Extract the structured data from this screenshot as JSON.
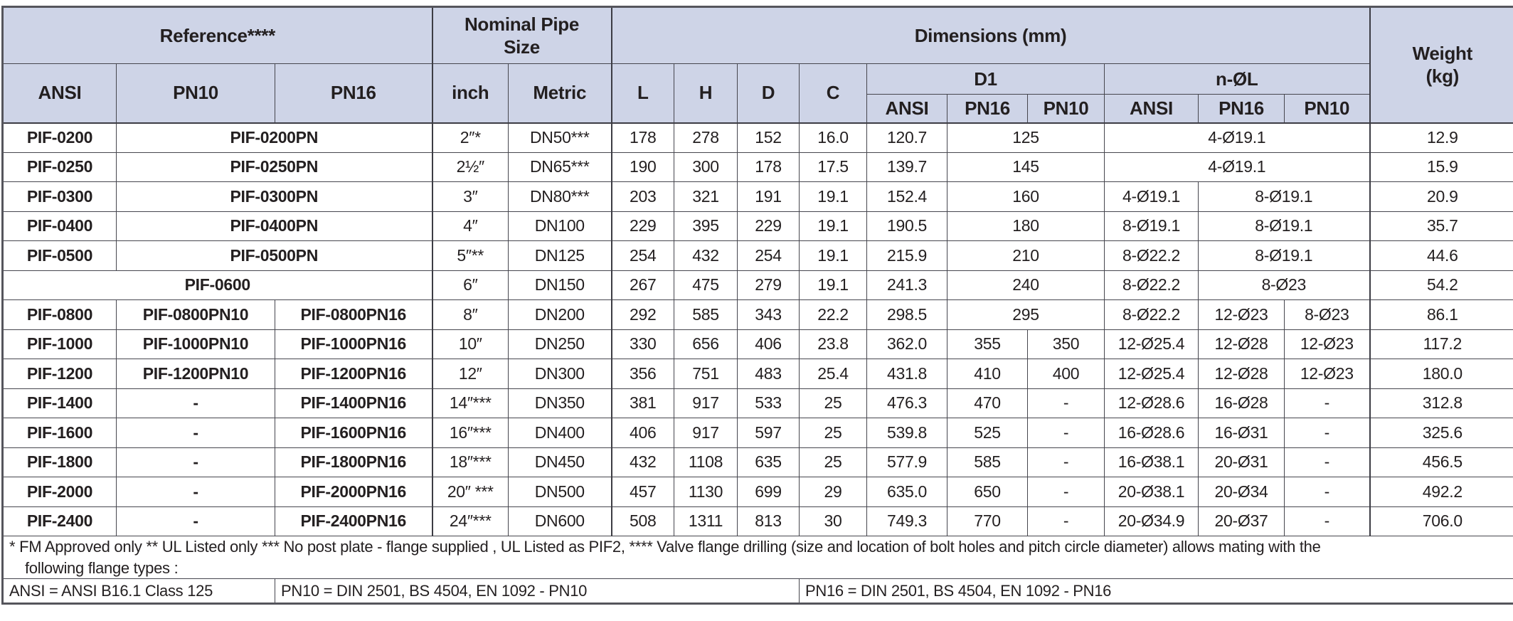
{
  "header": {
    "reference": "Reference****",
    "nominal_line1": "Nominal Pipe",
    "nominal_line2": "Size",
    "dimensions": "Dimensions (mm)",
    "weight_line1": "Weight",
    "weight_line2": "(kg)",
    "sub": {
      "ansi": "ANSI",
      "pn10": "PN10",
      "pn16": "PN16",
      "inch": "inch",
      "metric": "Metric",
      "l": "L",
      "h": "H",
      "d": "D",
      "c": "C",
      "d1": "D1",
      "n_ol": "n-ØL"
    }
  },
  "table": {
    "columns_order": [
      "Reference ANSI",
      "Reference PN10",
      "Reference PN16",
      "inch",
      "Metric",
      "L",
      "H",
      "D",
      "C",
      "D1 ANSI",
      "D1 PN16",
      "D1 PN10",
      "n-ØL ANSI",
      "n-ØL PN16",
      "n-ØL PN10",
      "Weight (kg)"
    ],
    "body": [
      [
        [
          "PIF-0200",
          1
        ],
        [
          "PIF-0200PN",
          2
        ],
        [
          "2″*",
          1
        ],
        [
          "DN50***",
          1
        ],
        [
          "178",
          1
        ],
        [
          "278",
          1
        ],
        [
          "152",
          1
        ],
        [
          "16.0",
          1
        ],
        [
          "120.7",
          1
        ],
        [
          "125",
          2
        ],
        [
          "4-Ø19.1",
          3
        ],
        [
          "12.9",
          1
        ]
      ],
      [
        [
          "PIF-0250",
          1
        ],
        [
          "PIF-0250PN",
          2
        ],
        [
          "2½″",
          1
        ],
        [
          "DN65***",
          1
        ],
        [
          "190",
          1
        ],
        [
          "300",
          1
        ],
        [
          "178",
          1
        ],
        [
          "17.5",
          1
        ],
        [
          "139.7",
          1
        ],
        [
          "145",
          2
        ],
        [
          "4-Ø19.1",
          3
        ],
        [
          "15.9",
          1
        ]
      ],
      [
        [
          "PIF-0300",
          1
        ],
        [
          "PIF-0300PN",
          2
        ],
        [
          "3″",
          1
        ],
        [
          "DN80***",
          1
        ],
        [
          "203",
          1
        ],
        [
          "321",
          1
        ],
        [
          "191",
          1
        ],
        [
          "19.1",
          1
        ],
        [
          "152.4",
          1
        ],
        [
          "160",
          2
        ],
        [
          "4-Ø19.1",
          1
        ],
        [
          "8-Ø19.1",
          2
        ],
        [
          "20.9",
          1
        ]
      ],
      [
        [
          "PIF-0400",
          1
        ],
        [
          "PIF-0400PN",
          2
        ],
        [
          "4″",
          1
        ],
        [
          "DN100",
          1
        ],
        [
          "229",
          1
        ],
        [
          "395",
          1
        ],
        [
          "229",
          1
        ],
        [
          "19.1",
          1
        ],
        [
          "190.5",
          1
        ],
        [
          "180",
          2
        ],
        [
          "8-Ø19.1",
          1
        ],
        [
          "8-Ø19.1",
          2
        ],
        [
          "35.7",
          1
        ]
      ],
      [
        [
          "PIF-0500",
          1
        ],
        [
          "PIF-0500PN",
          2
        ],
        [
          "5″**",
          1
        ],
        [
          "DN125",
          1
        ],
        [
          "254",
          1
        ],
        [
          "432",
          1
        ],
        [
          "254",
          1
        ],
        [
          "19.1",
          1
        ],
        [
          "215.9",
          1
        ],
        [
          "210",
          2
        ],
        [
          "8-Ø22.2",
          1
        ],
        [
          "8-Ø19.1",
          2
        ],
        [
          "44.6",
          1
        ]
      ],
      [
        [
          "PIF-0600",
          3
        ],
        [
          "6″",
          1
        ],
        [
          "DN150",
          1
        ],
        [
          "267",
          1
        ],
        [
          "475",
          1
        ],
        [
          "279",
          1
        ],
        [
          "19.1",
          1
        ],
        [
          "241.3",
          1
        ],
        [
          "240",
          2
        ],
        [
          "8-Ø22.2",
          1
        ],
        [
          "8-Ø23",
          2
        ],
        [
          "54.2",
          1
        ]
      ],
      [
        [
          "PIF-0800",
          1
        ],
        [
          "PIF-0800PN10",
          1
        ],
        [
          "PIF-0800PN16",
          1
        ],
        [
          "8″",
          1
        ],
        [
          "DN200",
          1
        ],
        [
          "292",
          1
        ],
        [
          "585",
          1
        ],
        [
          "343",
          1
        ],
        [
          "22.2",
          1
        ],
        [
          "298.5",
          1
        ],
        [
          "295",
          2
        ],
        [
          "8-Ø22.2",
          1
        ],
        [
          "12-Ø23",
          1
        ],
        [
          "8-Ø23",
          1
        ],
        [
          "86.1",
          1
        ]
      ],
      [
        [
          "PIF-1000",
          1
        ],
        [
          "PIF-1000PN10",
          1
        ],
        [
          "PIF-1000PN16",
          1
        ],
        [
          "10″",
          1
        ],
        [
          "DN250",
          1
        ],
        [
          "330",
          1
        ],
        [
          "656",
          1
        ],
        [
          "406",
          1
        ],
        [
          "23.8",
          1
        ],
        [
          "362.0",
          1
        ],
        [
          "355",
          1
        ],
        [
          "350",
          1
        ],
        [
          "12-Ø25.4",
          1
        ],
        [
          "12-Ø28",
          1
        ],
        [
          "12-Ø23",
          1
        ],
        [
          "117.2",
          1
        ]
      ],
      [
        [
          "PIF-1200",
          1
        ],
        [
          "PIF-1200PN10",
          1
        ],
        [
          "PIF-1200PN16",
          1
        ],
        [
          "12″",
          1
        ],
        [
          "DN300",
          1
        ],
        [
          "356",
          1
        ],
        [
          "751",
          1
        ],
        [
          "483",
          1
        ],
        [
          "25.4",
          1
        ],
        [
          "431.8",
          1
        ],
        [
          "410",
          1
        ],
        [
          "400",
          1
        ],
        [
          "12-Ø25.4",
          1
        ],
        [
          "12-Ø28",
          1
        ],
        [
          "12-Ø23",
          1
        ],
        [
          "180.0",
          1
        ]
      ],
      [
        [
          "PIF-1400",
          1
        ],
        [
          "-",
          1
        ],
        [
          "PIF-1400PN16",
          1
        ],
        [
          "14″***",
          1
        ],
        [
          "DN350",
          1
        ],
        [
          "381",
          1
        ],
        [
          "917",
          1
        ],
        [
          "533",
          1
        ],
        [
          "25",
          1
        ],
        [
          "476.3",
          1
        ],
        [
          "470",
          1
        ],
        [
          "-",
          1
        ],
        [
          "12-Ø28.6",
          1
        ],
        [
          "16-Ø28",
          1
        ],
        [
          "-",
          1
        ],
        [
          "312.8",
          1
        ]
      ],
      [
        [
          "PIF-1600",
          1
        ],
        [
          "-",
          1
        ],
        [
          "PIF-1600PN16",
          1
        ],
        [
          "16″***",
          1
        ],
        [
          "DN400",
          1
        ],
        [
          "406",
          1
        ],
        [
          "917",
          1
        ],
        [
          "597",
          1
        ],
        [
          "25",
          1
        ],
        [
          "539.8",
          1
        ],
        [
          "525",
          1
        ],
        [
          "-",
          1
        ],
        [
          "16-Ø28.6",
          1
        ],
        [
          "16-Ø31",
          1
        ],
        [
          "-",
          1
        ],
        [
          "325.6",
          1
        ]
      ],
      [
        [
          "PIF-1800",
          1
        ],
        [
          "-",
          1
        ],
        [
          "PIF-1800PN16",
          1
        ],
        [
          "18″***",
          1
        ],
        [
          "DN450",
          1
        ],
        [
          "432",
          1
        ],
        [
          "1108",
          1
        ],
        [
          "635",
          1
        ],
        [
          "25",
          1
        ],
        [
          "577.9",
          1
        ],
        [
          "585",
          1
        ],
        [
          "-",
          1
        ],
        [
          "16-Ø38.1",
          1
        ],
        [
          "20-Ø31",
          1
        ],
        [
          "-",
          1
        ],
        [
          "456.5",
          1
        ]
      ],
      [
        [
          "PIF-2000",
          1
        ],
        [
          "-",
          1
        ],
        [
          "PIF-2000PN16",
          1
        ],
        [
          "20″ ***",
          1
        ],
        [
          "DN500",
          1
        ],
        [
          "457",
          1
        ],
        [
          "1130",
          1
        ],
        [
          "699",
          1
        ],
        [
          "29",
          1
        ],
        [
          "635.0",
          1
        ],
        [
          "650",
          1
        ],
        [
          "-",
          1
        ],
        [
          "20-Ø38.1",
          1
        ],
        [
          "20-Ø34",
          1
        ],
        [
          "-",
          1
        ],
        [
          "492.2",
          1
        ]
      ],
      [
        [
          "PIF-2400",
          1
        ],
        [
          "-",
          1
        ],
        [
          "PIF-2400PN16",
          1
        ],
        [
          "24″***",
          1
        ],
        [
          "DN600",
          1
        ],
        [
          "508",
          1
        ],
        [
          "1311",
          1
        ],
        [
          "813",
          1
        ],
        [
          "30",
          1
        ],
        [
          "749.3",
          1
        ],
        [
          "770",
          1
        ],
        [
          "-",
          1
        ],
        [
          "20-Ø34.9",
          1
        ],
        [
          "20-Ø37",
          1
        ],
        [
          "-",
          1
        ],
        [
          "706.0",
          1
        ]
      ]
    ]
  },
  "notes": {
    "footnote_line1": "* FM Approved only ** UL Listed only *** No post plate - flange supplied , UL Listed as PIF2, **** Valve flange drilling (size and location of bolt holes and pitch circle diameter) allows mating with the",
    "footnote_line2": "following flange types :",
    "defs": [
      "ANSI = ANSI B16.1 Class 125",
      "PN10 = DIN 2501, BS 4504, EN 1092 - PN10",
      "PN16 = DIN 2501, BS 4504, EN 1092 - PN16"
    ]
  },
  "colors": {
    "header_bg": "#ced4e7",
    "border_outer": "#55555c",
    "border_inner": "#46464e",
    "text": "#231f20"
  }
}
